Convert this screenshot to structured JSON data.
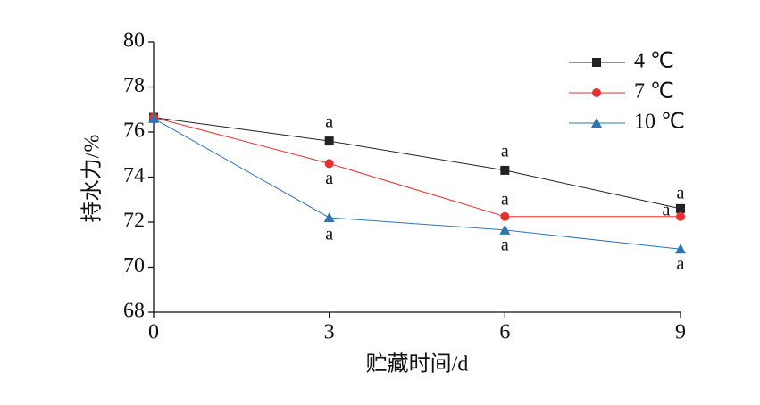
{
  "chart_data": {
    "type": "line",
    "x": [
      0,
      3,
      6,
      9
    ],
    "xlabel": "贮藏时间/d",
    "ylabel": "持水力/%",
    "xlim": [
      0,
      9
    ],
    "xticks": [
      0,
      3,
      6,
      9
    ],
    "ylim": [
      68,
      80
    ],
    "yticks": [
      68,
      70,
      72,
      74,
      76,
      78,
      80
    ],
    "legend": "upper right",
    "series": [
      {
        "name": "4 ℃",
        "color": "#222222",
        "marker": "square",
        "values": [
          76.65,
          75.6,
          74.3,
          72.6
        ],
        "significance": [
          null,
          "a",
          "a",
          "a"
        ]
      },
      {
        "name": "7 ℃",
        "color": "#e8312f",
        "marker": "circle",
        "values": [
          76.65,
          74.6,
          72.25,
          72.25
        ],
        "significance": [
          null,
          "a",
          "a",
          "a"
        ]
      },
      {
        "name": "10 ℃",
        "color": "#2f75b5",
        "marker": "triangle",
        "values": [
          76.6,
          72.2,
          71.65,
          70.8
        ],
        "significance": [
          null,
          "a",
          "a",
          "a"
        ]
      }
    ]
  }
}
